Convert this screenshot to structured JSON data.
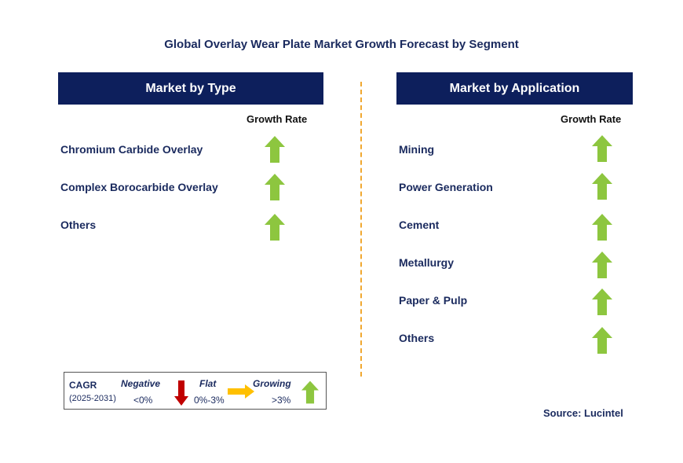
{
  "title": "Global Overlay Wear Plate Market Growth Forecast by Segment",
  "left_panel": {
    "header": "Market by Type",
    "growth_label": "Growth Rate",
    "items": [
      {
        "label": "Chromium Carbide Overlay",
        "trend": "growing"
      },
      {
        "label": "Complex Borocarbide Overlay",
        "trend": "growing"
      },
      {
        "label": "Others",
        "trend": "growing"
      }
    ]
  },
  "right_panel": {
    "header": "Market by Application",
    "growth_label": "Growth Rate",
    "items": [
      {
        "label": "Mining",
        "trend": "growing"
      },
      {
        "label": "Power Generation",
        "trend": "growing"
      },
      {
        "label": "Cement",
        "trend": "growing"
      },
      {
        "label": "Metallurgy",
        "trend": "growing"
      },
      {
        "label": "Paper & Pulp",
        "trend": "growing"
      },
      {
        "label": "Others",
        "trend": "growing"
      }
    ]
  },
  "legend": {
    "cagr_label": "CAGR",
    "period": "(2025-2031)",
    "negative": {
      "label": "Negative",
      "range": "<0%",
      "icon": "red-down-arrow-icon",
      "color": "#c00000"
    },
    "flat": {
      "label": "Flat",
      "range": "0%-3%",
      "icon": "yellow-right-arrow-icon",
      "color": "#ffc000"
    },
    "growing": {
      "label": "Growing",
      "range": ">3%",
      "icon": "green-up-arrow-icon",
      "color": "#8dc63f"
    }
  },
  "source": "Source: Lucintel",
  "colors": {
    "header_bg": "#0d1f5c",
    "divider": "#f0a830",
    "text": "#1a2a5e"
  }
}
